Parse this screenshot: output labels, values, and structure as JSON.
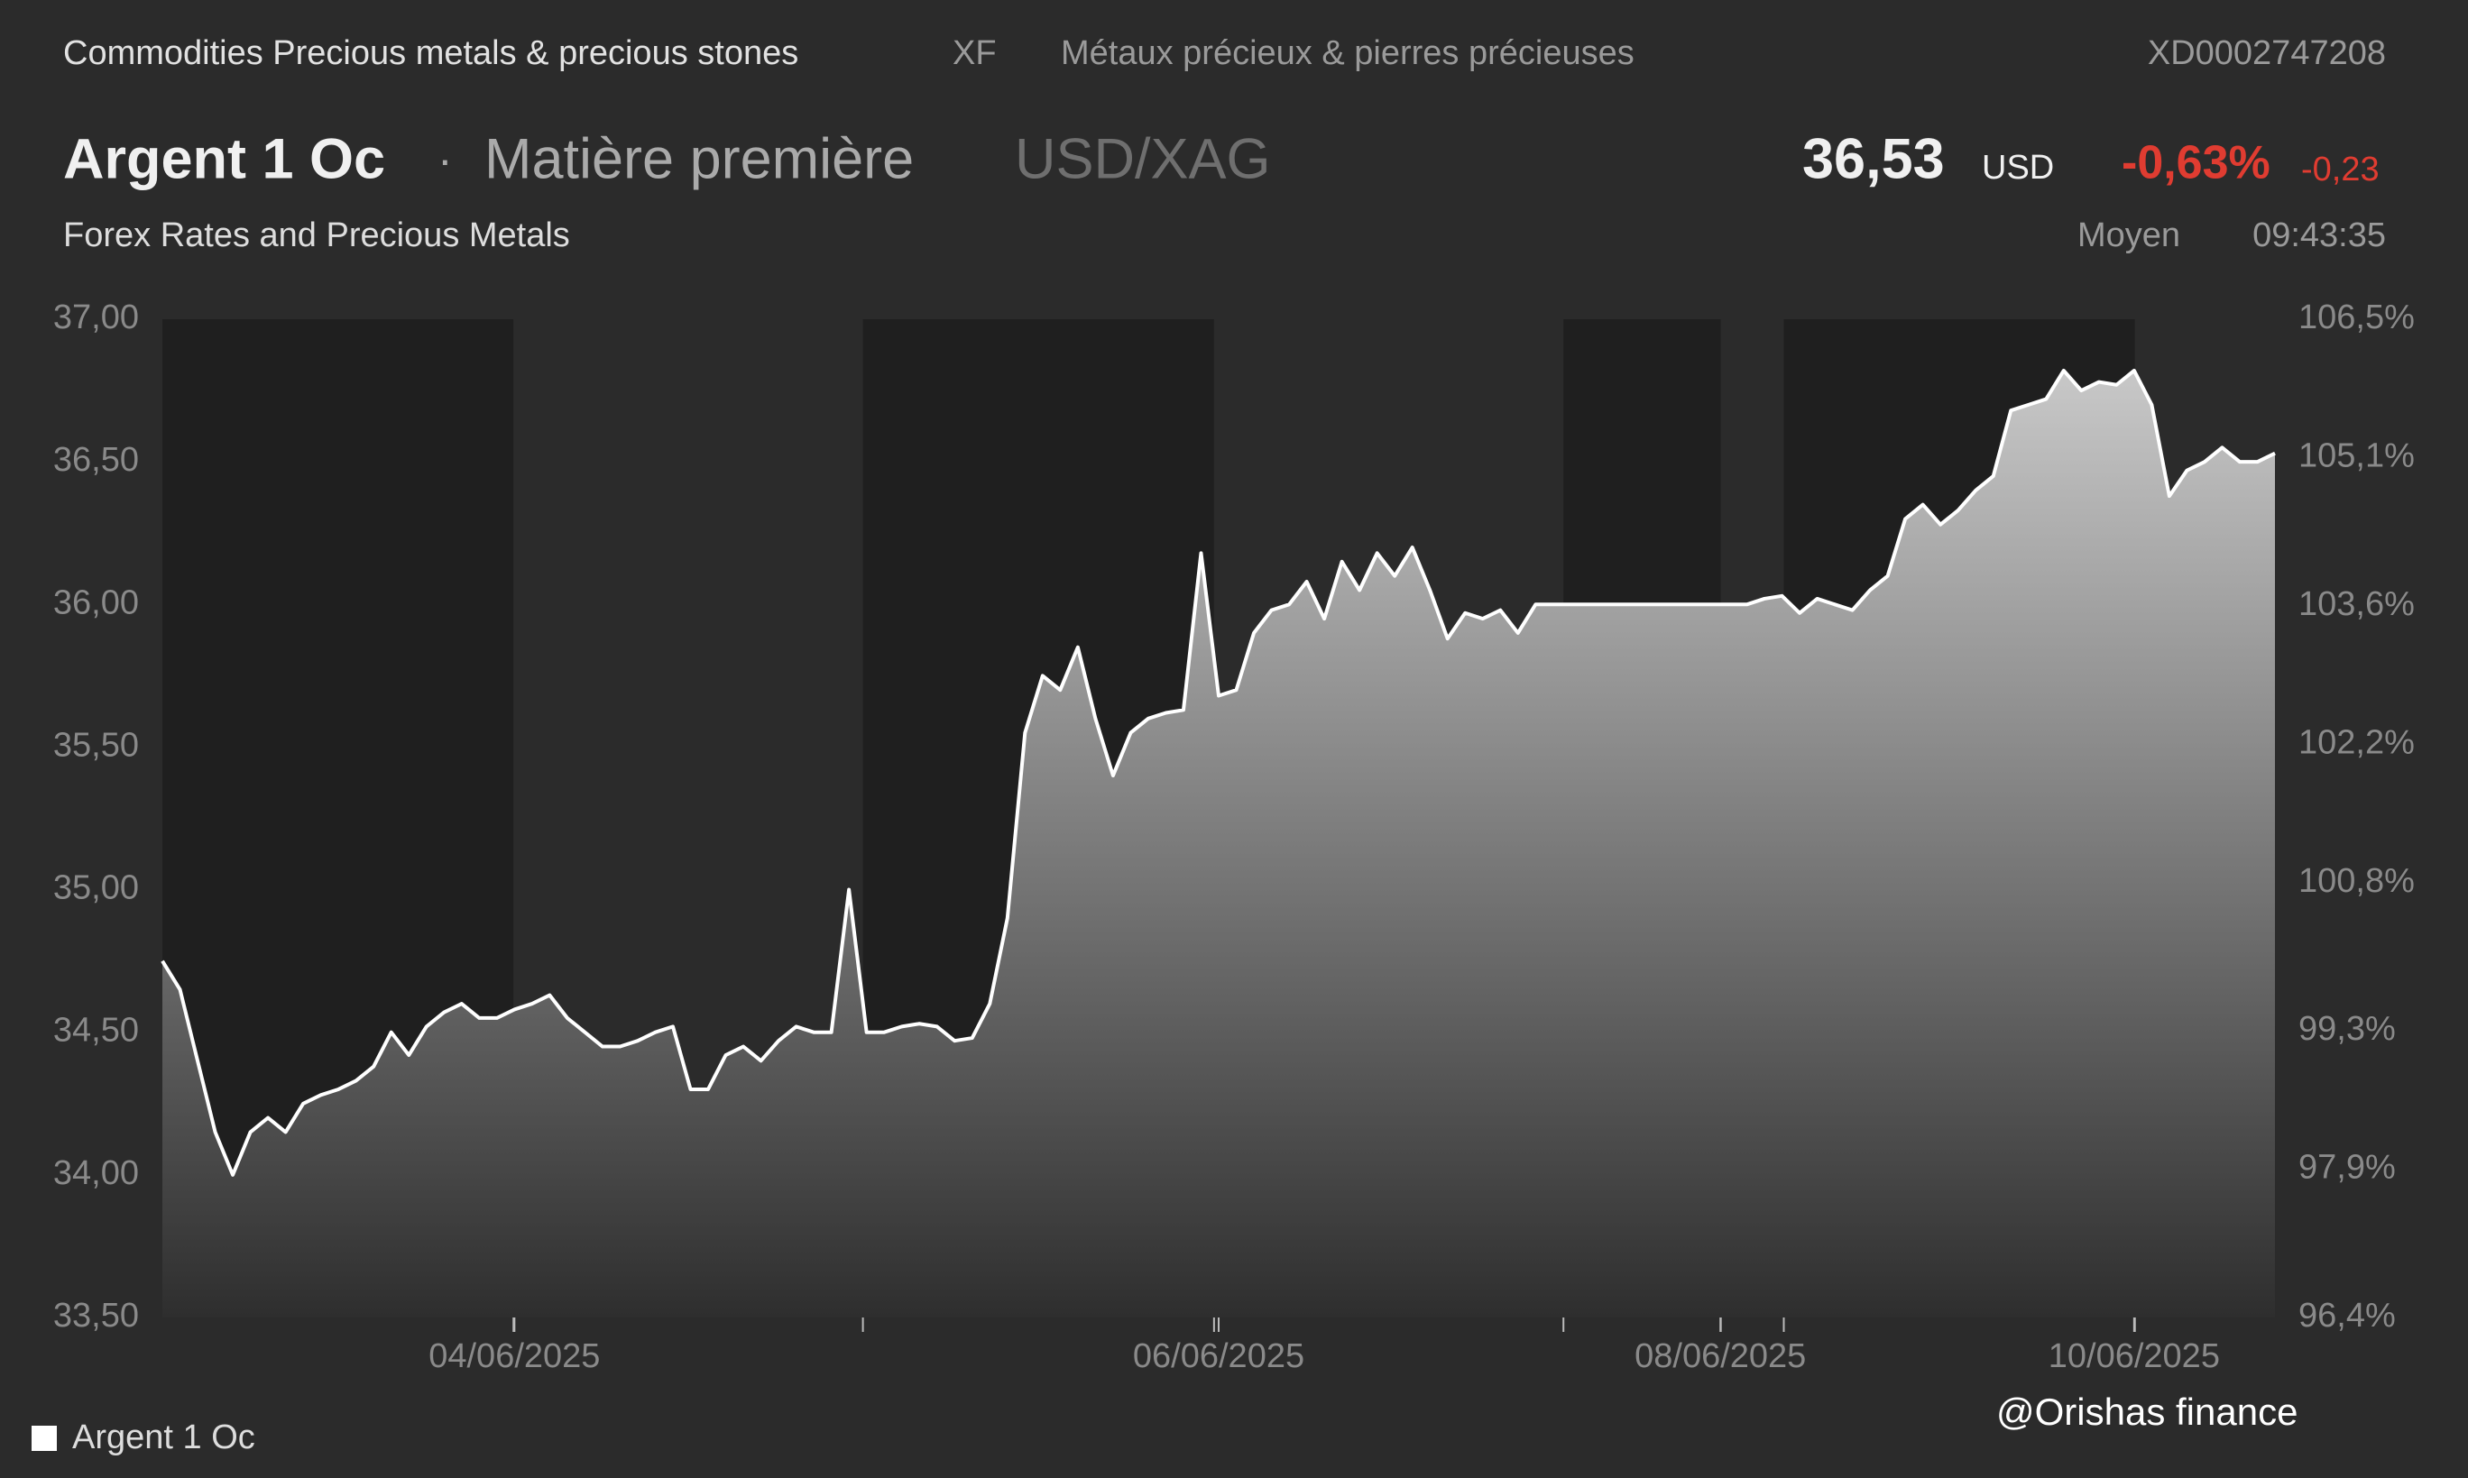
{
  "header": {
    "category": "Commodities Precious metals & precious stones",
    "exchange": "XF",
    "category_fr": "Métaux précieux & pierres précieuses",
    "isin": "XD0002747208",
    "name": "Argent 1 Oc",
    "separator": "·",
    "kind": "Matière première",
    "pair": "USD/XAG",
    "price": "36,53",
    "currency": "USD",
    "change_pct": "-0,63%",
    "change": "-0,23",
    "source": "Forex Rates and Precious Metals",
    "price_type": "Moyen",
    "time": "09:43:35"
  },
  "chart_data": {
    "type": "line",
    "annotation": "@Orishas finance",
    "xlim": [
      0,
      120
    ],
    "xticks": [
      {
        "value": 20,
        "label": "04/06/2025"
      },
      {
        "value": 60,
        "label": "06/06/2025"
      },
      {
        "value": 88.5,
        "label": "08/06/2025"
      },
      {
        "value": 112,
        "label": "10/06/2025"
      }
    ],
    "ylim": [
      33.5,
      37
    ],
    "yticks": [
      {
        "value": 33.5,
        "label": "33,50"
      },
      {
        "value": 34,
        "label": "34,00"
      },
      {
        "value": 34.5,
        "label": "34,50"
      },
      {
        "value": 35,
        "label": "35,00"
      },
      {
        "value": 35.5,
        "label": "35,50"
      },
      {
        "value": 36,
        "label": "36,00"
      },
      {
        "value": 36.5,
        "label": "36,50"
      },
      {
        "value": 37,
        "label": "37,00"
      }
    ],
    "y2lim": [
      96.4,
      106.5
    ],
    "y2ticks": [
      {
        "value": 96.4,
        "label": "96,4%"
      },
      {
        "value": 97.9,
        "label": "97,9%"
      },
      {
        "value": 99.3,
        "label": "99,3%"
      },
      {
        "value": 100.8,
        "label": "100,8%"
      },
      {
        "value": 102.2,
        "label": "102,2%"
      },
      {
        "value": 103.6,
        "label": "103,6%"
      },
      {
        "value": 105.1,
        "label": "105,1%"
      },
      {
        "value": 106.5,
        "label": "106,5%"
      }
    ],
    "series": [
      {
        "name": "Argent 1 Oc",
        "color": "#ffffff",
        "values": [
          34.75,
          34.65,
          34.4,
          34.15,
          34.0,
          34.15,
          34.2,
          34.15,
          34.25,
          34.28,
          34.3,
          34.33,
          34.38,
          34.5,
          34.42,
          34.52,
          34.57,
          34.6,
          34.55,
          34.55,
          34.58,
          34.6,
          34.63,
          34.55,
          34.5,
          34.45,
          34.45,
          34.47,
          34.5,
          34.52,
          34.3,
          34.3,
          34.42,
          34.45,
          34.4,
          34.47,
          34.52,
          34.5,
          34.5,
          35.0,
          34.5,
          34.5,
          34.52,
          34.53,
          34.52,
          34.47,
          34.48,
          34.6,
          34.9,
          35.55,
          35.75,
          35.7,
          35.85,
          35.6,
          35.4,
          35.55,
          35.6,
          35.62,
          35.63,
          36.18,
          35.68,
          35.7,
          35.9,
          35.98,
          36.0,
          36.08,
          35.95,
          36.15,
          36.05,
          36.18,
          36.1,
          36.2,
          36.05,
          35.88,
          35.97,
          35.95,
          35.98,
          35.9,
          36.0,
          36.0,
          36.0,
          36.0,
          36.0,
          36.0,
          36.0,
          36.0,
          36.0,
          36.0,
          36.0,
          36.0,
          36.0,
          36.02,
          36.03,
          35.97,
          36.02,
          36.0,
          35.98,
          36.05,
          36.1,
          36.3,
          36.35,
          36.28,
          36.33,
          36.4,
          36.45,
          36.68,
          36.7,
          36.72,
          36.82,
          36.75,
          36.78,
          36.77,
          36.82,
          36.7,
          36.38,
          36.47,
          36.5,
          36.55,
          36.5,
          36.5,
          36.53
        ]
      }
    ]
  }
}
